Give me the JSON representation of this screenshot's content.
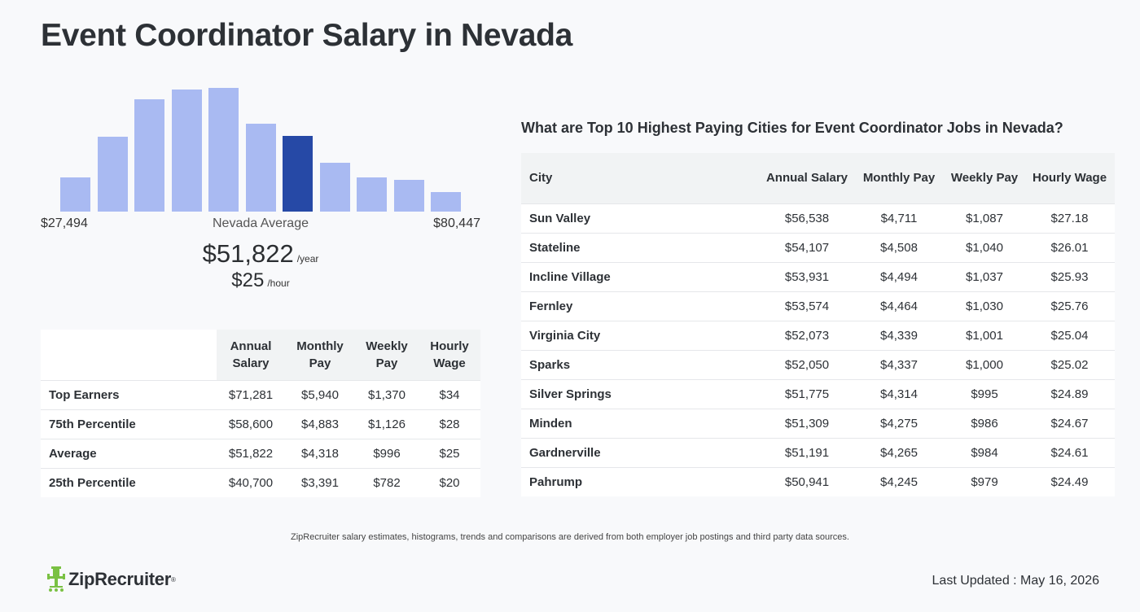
{
  "page": {
    "title": "Event Coordinator Salary in Nevada"
  },
  "histogram": {
    "bars": [
      {
        "value": 28,
        "highlighted": false
      },
      {
        "value": 61,
        "highlighted": false
      },
      {
        "value": 92,
        "highlighted": false
      },
      {
        "value": 100,
        "highlighted": false
      },
      {
        "value": 101,
        "highlighted": false
      },
      {
        "value": 72,
        "highlighted": false
      },
      {
        "value": 62,
        "highlighted": true
      },
      {
        "value": 40,
        "highlighted": false
      },
      {
        "value": 28,
        "highlighted": false
      },
      {
        "value": 26,
        "highlighted": false
      },
      {
        "value": 16,
        "highlighted": false
      }
    ],
    "min_label": "$27,494",
    "max_label": "$80,447",
    "avg_label": "Nevada Average",
    "bar_color": "#a9baf2",
    "highlight_color": "#2649a6"
  },
  "salary": {
    "annual": "$51,822",
    "annual_unit": "/year",
    "hourly": "$25",
    "hourly_unit": "/hour"
  },
  "percentile_table": {
    "headers": [
      "Annual Salary",
      "Monthly Pay",
      "Weekly Pay",
      "Hourly Wage"
    ],
    "rows": [
      {
        "label": "Top Earners",
        "cells": [
          "$71,281",
          "$5,940",
          "$1,370",
          "$34"
        ]
      },
      {
        "label": "75th Percentile",
        "cells": [
          "$58,600",
          "$4,883",
          "$1,126",
          "$28"
        ]
      },
      {
        "label": "Average",
        "cells": [
          "$51,822",
          "$4,318",
          "$996",
          "$25"
        ]
      },
      {
        "label": "25th Percentile",
        "cells": [
          "$40,700",
          "$3,391",
          "$782",
          "$20"
        ]
      }
    ]
  },
  "cities": {
    "heading": "What are Top 10 Highest Paying Cities for Event Coordinator Jobs in Nevada?",
    "headers": [
      "City",
      "Annual Salary",
      "Monthly Pay",
      "Weekly Pay",
      "Hourly Wage"
    ],
    "rows": [
      {
        "city": "Sun Valley",
        "cells": [
          "$56,538",
          "$4,711",
          "$1,087",
          "$27.18"
        ]
      },
      {
        "city": "Stateline",
        "cells": [
          "$54,107",
          "$4,508",
          "$1,040",
          "$26.01"
        ]
      },
      {
        "city": "Incline Village",
        "cells": [
          "$53,931",
          "$4,494",
          "$1,037",
          "$25.93"
        ]
      },
      {
        "city": "Fernley",
        "cells": [
          "$53,574",
          "$4,464",
          "$1,030",
          "$25.76"
        ]
      },
      {
        "city": "Virginia City",
        "cells": [
          "$52,073",
          "$4,339",
          "$1,001",
          "$25.04"
        ]
      },
      {
        "city": "Sparks",
        "cells": [
          "$52,050",
          "$4,337",
          "$1,000",
          "$25.02"
        ]
      },
      {
        "city": "Silver Springs",
        "cells": [
          "$51,775",
          "$4,314",
          "$995",
          "$24.89"
        ]
      },
      {
        "city": "Minden",
        "cells": [
          "$51,309",
          "$4,275",
          "$986",
          "$24.67"
        ]
      },
      {
        "city": "Gardnerville",
        "cells": [
          "$51,191",
          "$4,265",
          "$984",
          "$24.61"
        ]
      },
      {
        "city": "Pahrump",
        "cells": [
          "$50,941",
          "$4,245",
          "$979",
          "$24.49"
        ]
      }
    ]
  },
  "footer": {
    "note": "ZipRecruiter salary estimates, histograms, trends and comparisons are derived from both employer job postings and third party data sources.",
    "logo_text": "ZipRecruiter",
    "logo_icon": "chair-icon",
    "logo_color": "#7ac143",
    "last_updated": "Last Updated : May 16, 2026"
  }
}
